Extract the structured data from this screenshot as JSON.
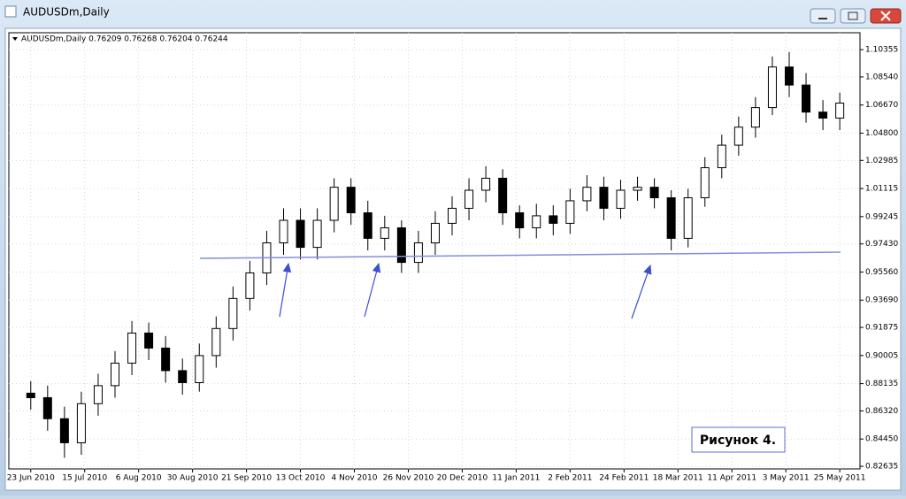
{
  "window_title": "AUDUSDm,Daily",
  "chart_data": {
    "type": "candlestick",
    "title": "AUDUSDm,Daily  0.76209 0.76268 0.76204 0.76244",
    "annotation": "Рисунок 4.",
    "x": [
      0,
      5,
      10,
      15,
      20,
      25,
      30,
      35,
      40,
      45,
      50,
      55,
      60,
      65,
      70,
      75,
      80,
      85,
      90,
      95,
      100,
      105,
      110,
      115,
      120,
      125,
      130,
      135,
      140,
      145,
      150,
      155,
      160,
      165,
      170,
      175,
      180,
      185,
      190,
      195,
      200,
      205,
      210,
      215,
      220,
      225,
      230,
      235,
      240
    ],
    "open": [
      0.875,
      0.872,
      0.858,
      0.842,
      0.868,
      0.88,
      0.895,
      0.915,
      0.905,
      0.89,
      0.882,
      0.9,
      0.918,
      0.938,
      0.955,
      0.975,
      0.99,
      0.972,
      0.99,
      1.012,
      0.995,
      0.978,
      0.985,
      0.962,
      0.975,
      0.988,
      0.998,
      1.01,
      1.018,
      0.995,
      0.985,
      0.993,
      0.988,
      1.003,
      1.012,
      0.998,
      1.01,
      1.012,
      1.005,
      0.978,
      1.005,
      1.025,
      1.04,
      1.052,
      1.065,
      1.092,
      1.08,
      1.062,
      1.058
    ],
    "high": [
      0.883,
      0.88,
      0.866,
      0.876,
      0.888,
      0.903,
      0.923,
      0.922,
      0.913,
      0.898,
      0.908,
      0.926,
      0.946,
      0.963,
      0.983,
      0.998,
      0.998,
      0.998,
      1.018,
      1.018,
      1.003,
      0.993,
      0.99,
      0.983,
      0.996,
      1.006,
      1.018,
      1.026,
      1.024,
      1.0,
      1.001,
      1.0,
      1.011,
      1.02,
      1.019,
      1.017,
      1.019,
      1.018,
      1.01,
      1.011,
      1.032,
      1.047,
      1.059,
      1.072,
      1.099,
      1.102,
      1.088,
      1.07,
      1.075
    ],
    "low": [
      0.864,
      0.85,
      0.832,
      0.834,
      0.86,
      0.872,
      0.887,
      0.897,
      0.882,
      0.874,
      0.876,
      0.892,
      0.91,
      0.93,
      0.947,
      0.967,
      0.964,
      0.964,
      0.982,
      0.987,
      0.97,
      0.97,
      0.955,
      0.955,
      0.967,
      0.98,
      0.99,
      1.002,
      0.987,
      0.978,
      0.978,
      0.98,
      0.981,
      0.996,
      0.99,
      0.991,
      1.003,
      0.998,
      0.97,
      0.972,
      0.999,
      1.018,
      1.033,
      1.045,
      1.06,
      1.072,
      1.055,
      1.05,
      1.05
    ],
    "close": [
      0.872,
      0.858,
      0.842,
      0.868,
      0.88,
      0.895,
      0.915,
      0.905,
      0.89,
      0.882,
      0.9,
      0.918,
      0.938,
      0.955,
      0.975,
      0.99,
      0.972,
      0.99,
      1.012,
      0.995,
      0.978,
      0.985,
      0.962,
      0.975,
      0.988,
      0.998,
      1.01,
      1.018,
      0.995,
      0.985,
      0.993,
      0.988,
      1.003,
      1.012,
      0.998,
      1.01,
      1.012,
      1.005,
      0.978,
      1.005,
      1.025,
      1.04,
      1.052,
      1.065,
      1.092,
      1.08,
      1.062,
      1.058,
      1.068
    ],
    "color": "#000000",
    "xlim": [
      -6.5,
      246
    ],
    "xticks": [
      {
        "value": 0,
        "label": "23 Jun 2010"
      },
      {
        "value": 16,
        "label": "15 Jul 2010"
      },
      {
        "value": 32,
        "label": "6 Aug 2010"
      },
      {
        "value": 48,
        "label": "30 Aug 2010"
      },
      {
        "value": 64,
        "label": "21 Sep 2010"
      },
      {
        "value": 80,
        "label": "13 Oct 2010"
      },
      {
        "value": 96,
        "label": "4 Nov 2010"
      },
      {
        "value": 112,
        "label": "26 Nov 2010"
      },
      {
        "value": 128,
        "label": "20 Dec 2010"
      },
      {
        "value": 144,
        "label": "11 Jan 2011"
      },
      {
        "value": 160,
        "label": "2 Feb 2011"
      },
      {
        "value": 176,
        "label": "24 Feb 2011"
      },
      {
        "value": 192,
        "label": "18 Mar 2011"
      },
      {
        "value": 208,
        "label": "11 Apr 2011"
      },
      {
        "value": 224,
        "label": "3 May 2011"
      },
      {
        "value": 240,
        "label": "25 May 2011"
      }
    ],
    "ylim": [
      0.8246,
      1.1148
    ],
    "yticks": [
      1.10355,
      {
        "value": 1.0854,
        "label": "1.08540"
      },
      {
        "value": 1.0667,
        "label": "1.06670"
      },
      {
        "value": 1.048,
        "label": "1.04800"
      },
      1.02985,
      1.01115,
      0.99245,
      {
        "value": 0.9743,
        "label": "0.97430"
      },
      {
        "value": 0.9556,
        "label": "0.95560"
      },
      {
        "value": 0.9369,
        "label": "0.93690"
      },
      0.91875,
      0.90005,
      0.88135,
      {
        "value": 0.8632,
        "label": "0.86320"
      },
      {
        "value": 0.8445,
        "label": "0.84450"
      },
      0.82635
    ],
    "grid": true
  }
}
